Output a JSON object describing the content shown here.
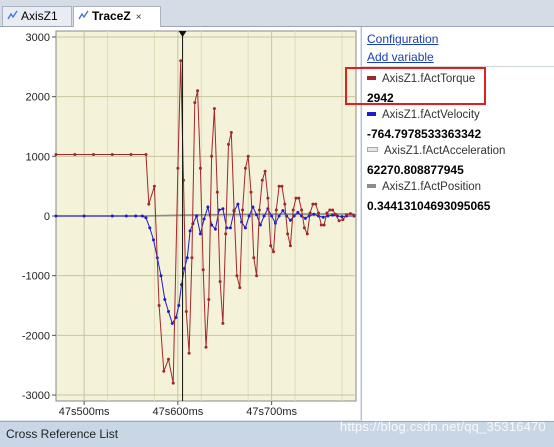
{
  "tabs": [
    {
      "label": "AxisZ1",
      "active": false,
      "icon": "scope-icon"
    },
    {
      "label": "TraceZ",
      "active": true,
      "icon": "scope-icon",
      "close": "×"
    }
  ],
  "side": {
    "configuration": "Configuration",
    "add_variable": "Add variable",
    "variables": [
      {
        "name": "AxisZ1.fActTorque",
        "value": "2942",
        "color": "#a0282a"
      },
      {
        "name": "AxisZ1.fActVelocity",
        "value": "-764.7978533363342",
        "color": "#1c1cc8"
      },
      {
        "name": "AxisZ1.fActAcceleration",
        "value": "62270.808877945",
        "color": "#d8d8d8"
      },
      {
        "name": "AxisZ1.fActPosition",
        "value": "0.34413104693095065",
        "color": "#8c8c8c"
      }
    ]
  },
  "bottom": {
    "title": "Cross Reference List"
  },
  "watermark": "https://blog.csdn.net/qq_35316470",
  "chart_data": {
    "type": "line",
    "x_unit": "ms",
    "xlim": [
      470,
      790
    ],
    "ylim": [
      -3100,
      3100
    ],
    "y_ticks": [
      3000,
      2000,
      1000,
      0,
      -1000,
      -2000,
      -3000
    ],
    "x_ticks": [
      {
        "x": 500,
        "label": "47s500ms"
      },
      {
        "x": 600,
        "label": "47s600ms"
      },
      {
        "x": 700,
        "label": "47s700ms"
      }
    ],
    "grid": true,
    "cursor_x": 605,
    "series": [
      {
        "name": "AxisZ1.fActTorque",
        "color": "#a0282a",
        "x": [
          470,
          490,
          510,
          530,
          550,
          566,
          569,
          575,
          580,
          585,
          590,
          595,
          600,
          603,
          606,
          609,
          612,
          615,
          618,
          621,
          624,
          627,
          630,
          633,
          636,
          639,
          642,
          645,
          648,
          651,
          654,
          657,
          660,
          663,
          666,
          669,
          672,
          675,
          678,
          681,
          684,
          687,
          690,
          693,
          696,
          699,
          702,
          705,
          708,
          711,
          714,
          717,
          720,
          723,
          726,
          729,
          732,
          735,
          738,
          741,
          744,
          747,
          750,
          753,
          756,
          759,
          762,
          765,
          768,
          772,
          776,
          780,
          784,
          788
        ],
        "values": [
          1030,
          1030,
          1030,
          1030,
          1030,
          1030,
          200,
          500,
          -1500,
          -2600,
          -2400,
          -2800,
          800,
          2600,
          600,
          -1600,
          -2300,
          -700,
          1900,
          2100,
          800,
          -900,
          -2200,
          -1400,
          1000,
          1800,
          400,
          -1100,
          -1800,
          -300,
          1200,
          1400,
          100,
          -1000,
          -1200,
          100,
          800,
          1000,
          400,
          -700,
          -1000,
          100,
          600,
          750,
          300,
          -500,
          -600,
          100,
          500,
          500,
          200,
          -300,
          -500,
          100,
          300,
          300,
          100,
          -200,
          -300,
          50,
          200,
          200,
          50,
          -150,
          -150,
          50,
          100,
          100,
          30,
          -80,
          -60,
          20,
          40,
          10
        ]
      },
      {
        "name": "AxisZ1.fActVelocity",
        "color": "#1c1cc8",
        "x": [
          470,
          500,
          530,
          545,
          555,
          562,
          566,
          570,
          574,
          578,
          582,
          586,
          590,
          594,
          598,
          601,
          604,
          607,
          610,
          613,
          616,
          620,
          624,
          628,
          632,
          636,
          640,
          644,
          648,
          652,
          656,
          660,
          664,
          668,
          672,
          676,
          680,
          684,
          688,
          692,
          696,
          700,
          704,
          708,
          712,
          716,
          720,
          724,
          728,
          732,
          736,
          740,
          745,
          750,
          755,
          760,
          765,
          770,
          775,
          780,
          788
        ],
        "values": [
          0,
          0,
          0,
          0,
          0,
          0,
          -30,
          -200,
          -400,
          -700,
          -1000,
          -1400,
          -1600,
          -1800,
          -1700,
          -1500,
          -1150,
          -880,
          -700,
          -250,
          -130,
          0,
          -300,
          -50,
          150,
          -150,
          -220,
          100,
          120,
          -200,
          -200,
          80,
          200,
          -100,
          -200,
          0,
          150,
          20,
          -150,
          0,
          120,
          0,
          -120,
          0,
          90,
          0,
          -70,
          0,
          60,
          0,
          -40,
          0,
          30,
          0,
          -20,
          0,
          15,
          0,
          -10,
          0,
          0
        ]
      },
      {
        "name": "AxisZ1.fActPosition",
        "color": "#8c8c8c",
        "x": [
          470,
          560,
          580,
          610,
          650,
          700,
          788
        ],
        "values": [
          0,
          0,
          5,
          15,
          25,
          30,
          35
        ]
      }
    ]
  }
}
